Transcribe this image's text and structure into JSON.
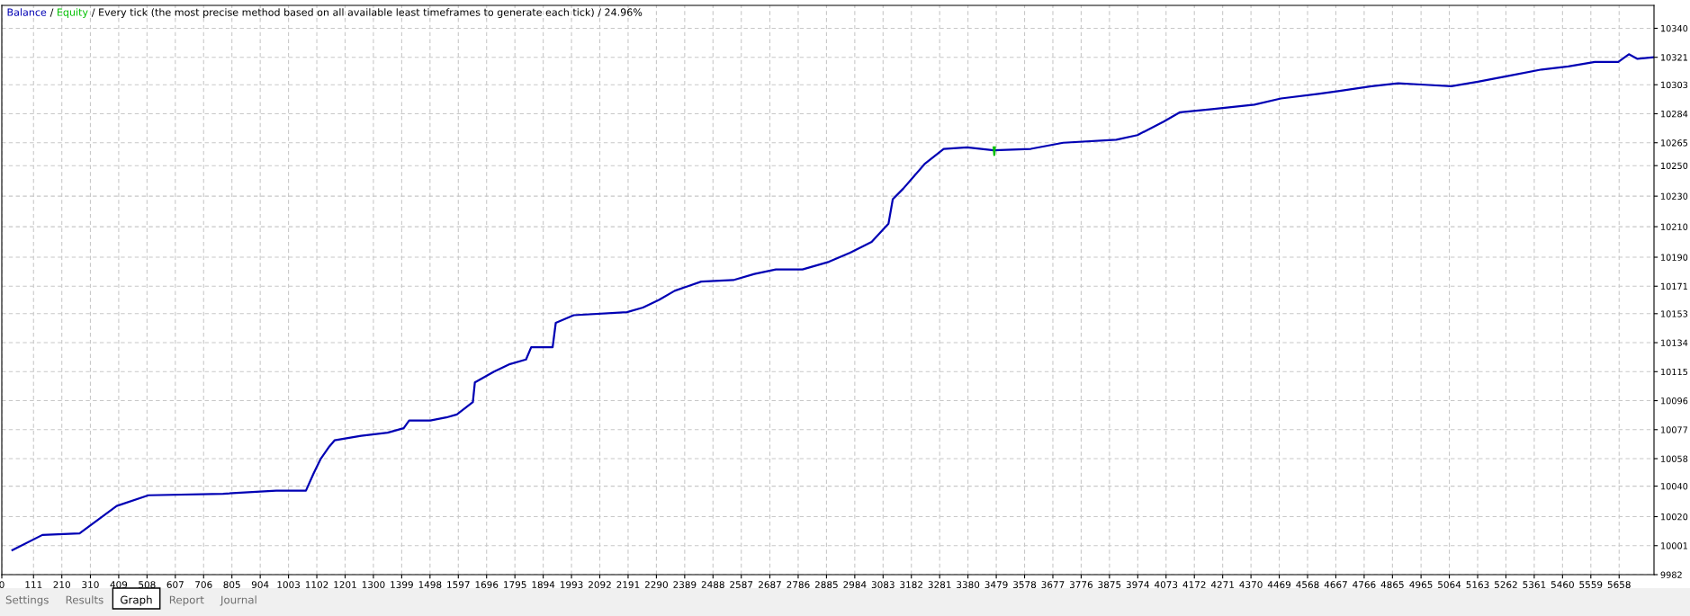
{
  "chart_data": {
    "type": "line",
    "title": "/ Every tick (the most precise method based on all available least timeframes to generate each tick) / 24.96%",
    "series": [
      {
        "name": "Balance",
        "color": "#0000b4",
        "x": [
          37,
          142,
          272,
          402,
          513,
          774,
          960,
          1064,
          1090,
          1116,
          1146,
          1164,
          1257,
          1350,
          1406,
          1425,
          1499,
          1555,
          1592,
          1648,
          1655,
          1722,
          1778,
          1834,
          1852,
          1927,
          1938,
          2001,
          2187,
          2243,
          2299,
          2354,
          2447,
          2559,
          2633,
          2708,
          2801,
          2894,
          2968,
          3043,
          3102,
          3117,
          3154,
          3228,
          3295,
          3377,
          3470,
          3600,
          3713,
          3899,
          3973,
          4066,
          4122,
          4234,
          4382,
          4475,
          4606,
          4680,
          4792,
          4885,
          4978,
          5071,
          5164,
          5275,
          5387,
          5480,
          5573,
          5655,
          5692,
          5722,
          5777
        ],
        "values": [
          9998,
          10008,
          10009,
          10027,
          10034,
          10035,
          10037,
          10037,
          10048,
          10058,
          10066,
          10070,
          10073,
          10075,
          10078,
          10083,
          10083,
          10085,
          10087,
          10095,
          10108,
          10115,
          10120,
          10123,
          10131,
          10131,
          10147,
          10152,
          10154,
          10157,
          10162,
          10168,
          10174,
          10175,
          10179,
          10182,
          10182,
          10187,
          10193,
          10200,
          10212,
          10228,
          10235,
          10251,
          10261,
          10262,
          10260,
          10261,
          10265,
          10267,
          10270,
          10279,
          10285,
          10287,
          10290,
          10294,
          10297,
          10299,
          10302,
          10304,
          10303,
          10302,
          10305,
          10309,
          10313,
          10315,
          10318,
          10318,
          10323,
          10320,
          10321
        ]
      },
      {
        "name": "Equity",
        "color": "#00c000",
        "x": [
          3470,
          3472,
          3474
        ],
        "values": [
          10262,
          10257,
          10262
        ]
      }
    ],
    "xlim": [
      0,
      5780
    ],
    "xticks": [
      0,
      111,
      210,
      310,
      409,
      508,
      607,
      706,
      805,
      904,
      1003,
      1102,
      1201,
      1300,
      1399,
      1498,
      1597,
      1696,
      1795,
      1894,
      1993,
      2092,
      2191,
      2290,
      2389,
      2488,
      2587,
      2687,
      2786,
      2885,
      2984,
      3083,
      3182,
      3281,
      3380,
      3479,
      3578,
      3677,
      3776,
      3875,
      3974,
      4073,
      4172,
      4271,
      4370,
      4469,
      4568,
      4667,
      4766,
      4865,
      4965,
      5064,
      5163,
      5262,
      5361,
      5460,
      5559,
      5658
    ],
    "ylim": [
      9982,
      10355
    ],
    "yticks": [
      9982,
      10001,
      10020,
      10040,
      10058,
      10077,
      10096,
      10115,
      10134,
      10153,
      10171,
      10190,
      10210,
      10230,
      10250,
      10265,
      10284,
      10303,
      10321,
      10340
    ],
    "grid": true,
    "legend": "top left",
    "line_style": "solid",
    "marker": "none",
    "annotations": [
      "/",
      "Settings",
      "Results",
      "Graph",
      "Report",
      "Journal"
    ]
  }
}
